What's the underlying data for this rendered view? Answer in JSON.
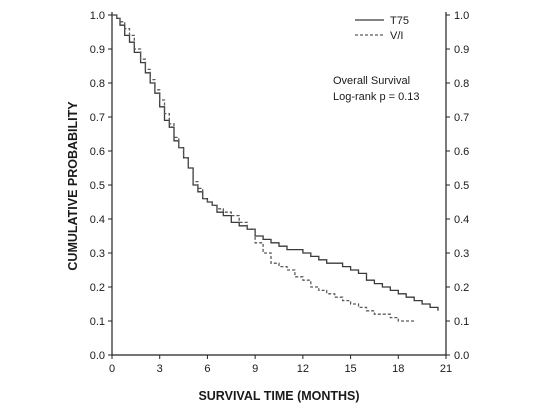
{
  "chart_data": {
    "type": "line",
    "subtype": "kaplan-meier",
    "title": "",
    "xlabel": "SURVIVAL TIME (MONTHS)",
    "ylabel": "CUMULATIVE PROBABILITY",
    "xlim": [
      0,
      21
    ],
    "ylim": [
      0,
      1.0
    ],
    "xticks": [
      "0",
      "3",
      "6",
      "9",
      "12",
      "15",
      "18",
      "21"
    ],
    "yticks": [
      "0.0",
      "0.1",
      "0.2",
      "0.3",
      "0.4",
      "0.5",
      "0.6",
      "0.7",
      "0.8",
      "0.9",
      "1.0"
    ],
    "right_axis": true,
    "grid": false,
    "legend_position": "top-right",
    "annotation": [
      "Overall Survival",
      "Log-rank p = 0.13"
    ],
    "series": [
      {
        "name": "T75",
        "line_style": "solid",
        "color": "#3a3a3a",
        "x": [
          0,
          0.3,
          0.5,
          0.8,
          1.1,
          1.4,
          1.8,
          2.1,
          2.4,
          2.7,
          3.0,
          3.3,
          3.6,
          3.9,
          4.2,
          4.5,
          4.8,
          5.1,
          5.4,
          5.7,
          6.0,
          6.3,
          6.6,
          7.0,
          7.5,
          8.0,
          8.5,
          9.0,
          9.5,
          10.0,
          10.5,
          11.0,
          11.5,
          12.0,
          12.5,
          13.0,
          13.5,
          14.0,
          14.5,
          15.0,
          15.5,
          16.0,
          16.5,
          17.0,
          17.5,
          18.0,
          18.5,
          19.0,
          19.5,
          20.0,
          20.5
        ],
        "y": [
          1.0,
          0.99,
          0.97,
          0.94,
          0.92,
          0.89,
          0.86,
          0.83,
          0.8,
          0.77,
          0.73,
          0.69,
          0.67,
          0.63,
          0.61,
          0.58,
          0.55,
          0.5,
          0.48,
          0.46,
          0.45,
          0.44,
          0.42,
          0.41,
          0.39,
          0.38,
          0.37,
          0.35,
          0.34,
          0.33,
          0.32,
          0.31,
          0.31,
          0.3,
          0.29,
          0.28,
          0.27,
          0.27,
          0.26,
          0.25,
          0.24,
          0.22,
          0.21,
          0.2,
          0.19,
          0.18,
          0.17,
          0.16,
          0.15,
          0.14,
          0.13
        ]
      },
      {
        "name": "V/I",
        "line_style": "dashed",
        "color": "#5a5a5a",
        "x": [
          0,
          0.3,
          0.5,
          0.8,
          1.1,
          1.4,
          1.8,
          2.1,
          2.4,
          2.7,
          3.0,
          3.3,
          3.6,
          3.9,
          4.2,
          4.5,
          4.8,
          5.1,
          5.4,
          5.7,
          6.0,
          6.3,
          6.6,
          7.0,
          7.5,
          8.0,
          8.5,
          9.0,
          9.5,
          10.0,
          10.5,
          11.0,
          11.5,
          12.0,
          12.5,
          13.0,
          13.5,
          14.0,
          14.5,
          15.0,
          15.5,
          16.0,
          16.5,
          17.0,
          17.5,
          18.0,
          18.5,
          19.0
        ],
        "y": [
          1.0,
          0.99,
          0.98,
          0.96,
          0.94,
          0.9,
          0.87,
          0.84,
          0.81,
          0.78,
          0.75,
          0.71,
          0.68,
          0.64,
          0.61,
          0.58,
          0.55,
          0.51,
          0.49,
          0.46,
          0.45,
          0.44,
          0.43,
          0.42,
          0.41,
          0.39,
          0.37,
          0.33,
          0.3,
          0.27,
          0.26,
          0.25,
          0.23,
          0.22,
          0.2,
          0.19,
          0.18,
          0.17,
          0.16,
          0.15,
          0.14,
          0.13,
          0.12,
          0.12,
          0.11,
          0.1,
          0.1,
          0.1
        ]
      }
    ]
  }
}
